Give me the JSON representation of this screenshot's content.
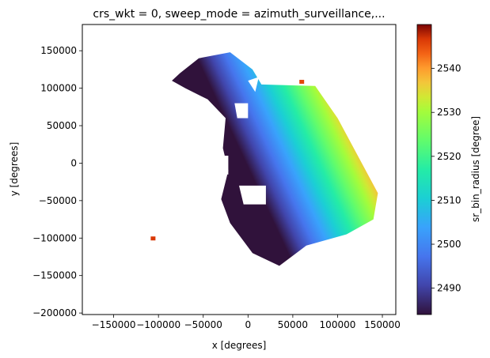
{
  "chart_data": {
    "type": "heatmap",
    "title": "crs_wkt = 0, sweep_mode = azimuth_surveillance,...",
    "xlabel": "x [degrees]",
    "ylabel": "y [degrees]",
    "colorbar_label": "sr_bin_radius [degree]",
    "colormap": "turbo",
    "xlim": [
      -185000,
      165000
    ],
    "ylim": [
      -202000,
      185000
    ],
    "clim": [
      2484,
      2550
    ],
    "x_ticks": [
      -150000,
      -100000,
      -50000,
      0,
      50000,
      100000,
      150000
    ],
    "x_tick_labels": [
      "−150000",
      "−100000",
      "−50000",
      "0",
      "50000",
      "100000",
      "150000"
    ],
    "y_ticks": [
      150000,
      100000,
      50000,
      0,
      -50000,
      -100000,
      -150000,
      -200000
    ],
    "y_tick_labels": [
      "150000",
      "100000",
      "50000",
      "0",
      "−50000",
      "−100000",
      "−150000",
      "−200000"
    ],
    "colorbar_ticks": [
      2490,
      2500,
      2510,
      2520,
      2530,
      2540
    ],
    "colorbar_tick_labels": [
      "2490",
      "2500",
      "2510",
      "2520",
      "2530",
      "2540"
    ],
    "field": {
      "description_units": "value increases along direction perpendicular to the long axis of the swath",
      "swath_outline": [
        [
          -76000,
          120000
        ],
        [
          -55000,
          140000
        ],
        [
          -20000,
          148000
        ],
        [
          5000,
          125000
        ],
        [
          15000,
          105000
        ],
        [
          75000,
          103000
        ],
        [
          100000,
          60000
        ],
        [
          145000,
          -40000
        ],
        [
          140000,
          -75000
        ],
        [
          110000,
          -95000
        ],
        [
          65000,
          -110000
        ],
        [
          35000,
          -137000
        ],
        [
          5000,
          -120000
        ],
        [
          -20000,
          -80000
        ],
        [
          -30000,
          -48000
        ],
        [
          -22000,
          -10000
        ],
        [
          -28000,
          20000
        ],
        [
          -25000,
          60000
        ],
        [
          -45000,
          85000
        ],
        [
          -70000,
          100000
        ],
        [
          -85000,
          110000
        ]
      ],
      "outlier_points": [
        [
          -106000,
          -101000
        ],
        [
          60000,
          108000
        ]
      ],
      "gaps": [
        [
          [
            -10000,
            -30000
          ],
          [
            20000,
            -30000
          ],
          [
            20000,
            -55000
          ],
          [
            -5000,
            -55000
          ]
        ],
        [
          [
            -15000,
            80000
          ],
          [
            0,
            80000
          ],
          [
            0,
            60000
          ],
          [
            -12000,
            60000
          ]
        ],
        [
          [
            0,
            110000
          ],
          [
            12000,
            115000
          ],
          [
            8000,
            95000
          ]
        ],
        [
          [
            -30000,
            10000
          ],
          [
            -22000,
            10000
          ],
          [
            -22000,
            -15000
          ],
          [
            -28000,
            -15000
          ]
        ]
      ]
    }
  }
}
